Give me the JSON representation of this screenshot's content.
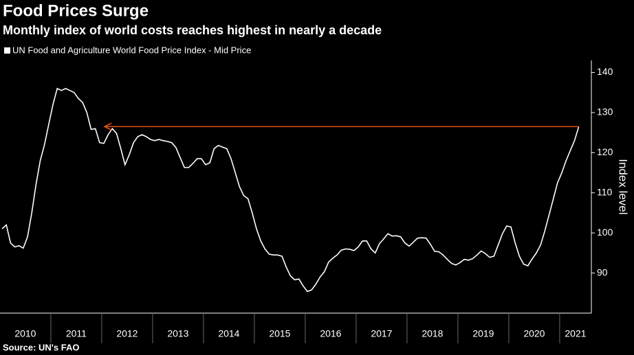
{
  "chart_data": {
    "type": "line",
    "title": "Food Prices Surge",
    "subtitle": "Monthly index of world costs reaches highest in nearly a decade",
    "y_label": "Index level",
    "source": "Source: UN's FAO",
    "categories": [
      "2010",
      null,
      null,
      null,
      null,
      null,
      null,
      null,
      null,
      null,
      null,
      null,
      "2011",
      null,
      null,
      null,
      null,
      null,
      null,
      null,
      null,
      null,
      null,
      null,
      "2012",
      null,
      null,
      null,
      null,
      null,
      null,
      null,
      null,
      null,
      null,
      null,
      "2013",
      null,
      null,
      null,
      null,
      null,
      null,
      null,
      null,
      null,
      null,
      null,
      "2014",
      null,
      null,
      null,
      null,
      null,
      null,
      null,
      null,
      null,
      null,
      null,
      "2015",
      null,
      null,
      null,
      null,
      null,
      null,
      null,
      null,
      null,
      null,
      null,
      "2016",
      null,
      null,
      null,
      null,
      null,
      null,
      null,
      null,
      null,
      null,
      null,
      "2017",
      null,
      null,
      null,
      null,
      null,
      null,
      null,
      null,
      null,
      null,
      null,
      "2018",
      null,
      null,
      null,
      null,
      null,
      null,
      null,
      null,
      null,
      null,
      null,
      "2019",
      null,
      null,
      null,
      null,
      null,
      null,
      null,
      null,
      null,
      null,
      null,
      "2020",
      null,
      null,
      null,
      null,
      null,
      null,
      null,
      null,
      null,
      null,
      null,
      "2021",
      null,
      null,
      null,
      null
    ],
    "series": [
      {
        "name": "UN Food and Agriculture World Food Price Index - Mid Price",
        "color": "#ffffff",
        "values": [
          101,
          102,
          97.5,
          96.5,
          96.8,
          96.2,
          99,
          105,
          112,
          118,
          122,
          127,
          132,
          136,
          135.5,
          136,
          135.5,
          135,
          133.5,
          132.5,
          130,
          125.8,
          126,
          122.5,
          122.3,
          124.5,
          126,
          124.8,
          121,
          117,
          119.5,
          122.5,
          124,
          124.5,
          124,
          123.3,
          123,
          123.3,
          123,
          122.8,
          122.5,
          121.3,
          118.8,
          116.3,
          116.3,
          117.3,
          118.5,
          118.5,
          117,
          117.5,
          121,
          121.8,
          121.4,
          121,
          118.5,
          115,
          111.5,
          109.3,
          108.5,
          105,
          101,
          98,
          96,
          94.7,
          94.5,
          94.5,
          94.2,
          91.5,
          89.3,
          88.3,
          88.5,
          86.8,
          85.4,
          85.8,
          87.2,
          89,
          90.3,
          92.7,
          93.7,
          94.5,
          95.7,
          96,
          95.9,
          95.6,
          96.5,
          98,
          98,
          96,
          95,
          97.3,
          98.5,
          99.8,
          99.2,
          99.3,
          99,
          97.5,
          96.7,
          97.7,
          98.7,
          98.8,
          98.7,
          97.2,
          95.4,
          95.3,
          94.5,
          93.4,
          92.4,
          92,
          92.6,
          93.4,
          93.2,
          93.6,
          94.5,
          95.5,
          94.8,
          93.9,
          94.2,
          97,
          99.8,
          101.7,
          101.5,
          97.5,
          94.2,
          92.2,
          91.8,
          93.5,
          95,
          97,
          100.5,
          104.5,
          108.5,
          112.5,
          115,
          118,
          120.5,
          123,
          126.5
        ]
      }
    ],
    "annotation_color": "#e0531c",
    "ylim": [
      80,
      143
    ],
    "yticks": [
      90,
      100,
      110,
      120,
      130,
      140
    ]
  }
}
